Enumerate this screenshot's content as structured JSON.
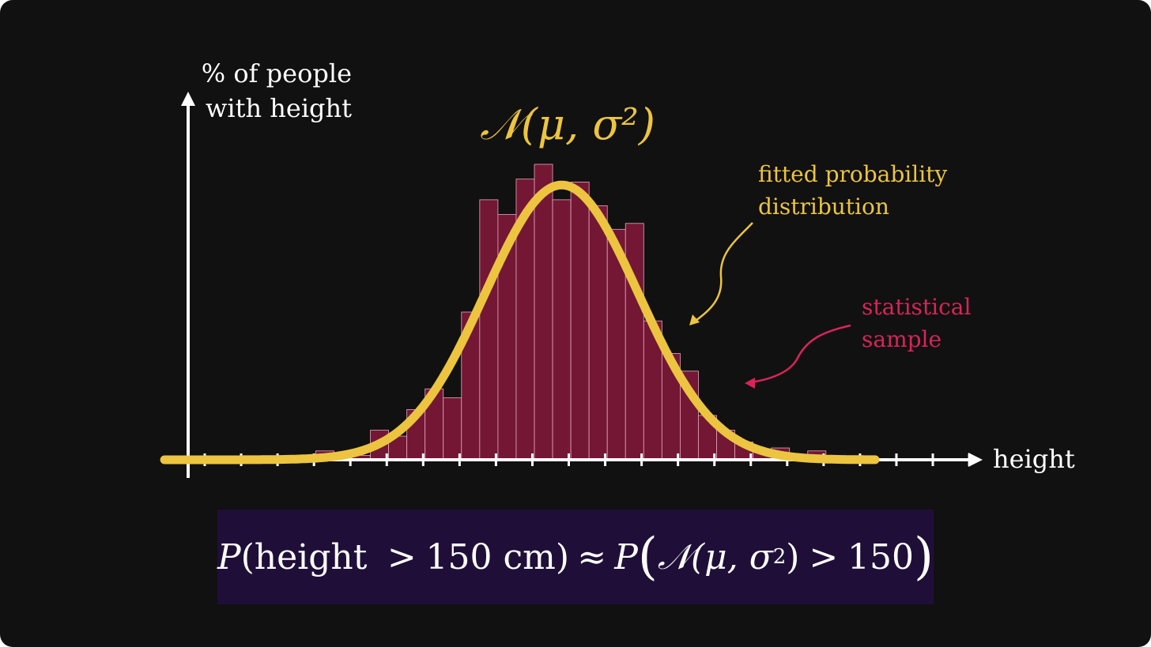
{
  "colors": {
    "background": "#111111",
    "bar_fill": "#731735",
    "bar_stroke": "#e6a8bc",
    "curve": "#ecc440",
    "axis": "#ffffff",
    "annotation_yellow": "#ecc440",
    "annotation_pink": "#d8245a",
    "formula_box": "#1f0f38"
  },
  "chart_data": {
    "type": "bar",
    "title": "𝒩(μ, σ²)",
    "ylabel_lines": [
      "% of people",
      "with height"
    ],
    "xlabel": "height",
    "ylim": [
      0,
      100
    ],
    "grid": false,
    "series": [
      {
        "kind": "histogram",
        "bin_start": 14,
        "bin_end": 39,
        "values": [
          0,
          0,
          0,
          0,
          0,
          0,
          0,
          0,
          3,
          0,
          1.5,
          10,
          8,
          17,
          24,
          21,
          50,
          88,
          83,
          95,
          100,
          88,
          94,
          86,
          78,
          80,
          47,
          36,
          30,
          15,
          10,
          6,
          3,
          4,
          1.5,
          3,
          0,
          0,
          0
        ]
      },
      {
        "kind": "normal_curve",
        "mu": 21.5,
        "sigma": 4.2,
        "peak": 93
      }
    ],
    "tick_count": 22,
    "annotations": {
      "curve_label": [
        "fitted probability",
        "distribution"
      ],
      "sample_label": [
        "statistical",
        "sample"
      ]
    }
  },
  "formula": {
    "p": "P",
    "open_paren": "(",
    "word": "height",
    "gt": ">",
    "value": "150 cm",
    "close_paren": ")",
    "approx": "≈",
    "p2": "P",
    "big_open": "(",
    "normal": "𝒩(μ, σ",
    "sq": "2",
    "normal_close": ")",
    "gt2": ">",
    "value2": "150",
    "big_close": ")"
  }
}
